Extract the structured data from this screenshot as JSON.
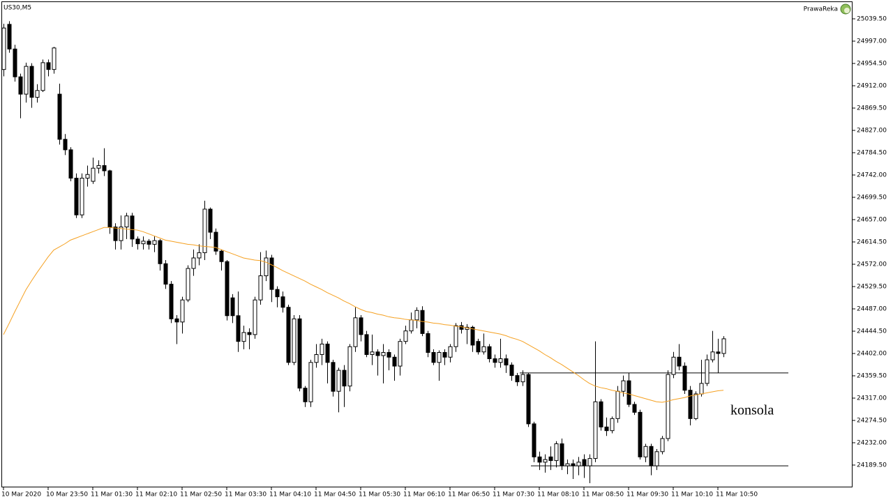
{
  "chart_data": {
    "type": "candlestick",
    "title": "US30,M5",
    "brand": "PrawaReka",
    "annotation": "konsola",
    "bull_color": "#ffffff",
    "bear_color": "#000000",
    "categories": [
      "10 Mar 2020",
      null,
      null,
      null,
      null,
      null,
      null,
      null,
      "10 Mar 23:50",
      null,
      null,
      null,
      null,
      null,
      null,
      null,
      "11 Mar 01:30",
      null,
      null,
      null,
      null,
      null,
      null,
      null,
      "11 Mar 02:10",
      null,
      null,
      null,
      null,
      null,
      null,
      null,
      "11 Mar 02:50",
      null,
      null,
      null,
      null,
      null,
      null,
      null,
      "11 Mar 03:30",
      null,
      null,
      null,
      null,
      null,
      null,
      null,
      "11 Mar 04:10",
      null,
      null,
      null,
      null,
      null,
      null,
      null,
      "11 Mar 04:50",
      null,
      null,
      null,
      null,
      null,
      null,
      null,
      "11 Mar 05:30",
      null,
      null,
      null,
      null,
      null,
      null,
      null,
      "11 Mar 06:10",
      null,
      null,
      null,
      null,
      null,
      null,
      null,
      "11 Mar 06:50",
      null,
      null,
      null,
      null,
      null,
      null,
      null,
      "11 Mar 07:30",
      null,
      null,
      null,
      null,
      null,
      null,
      null,
      "11 Mar 08:10",
      null,
      null,
      null,
      null,
      null,
      null,
      null,
      "11 Mar 08:50",
      null,
      null,
      null,
      null,
      null,
      null,
      null,
      "11 Mar 09:30",
      null,
      null,
      null,
      null,
      null,
      null,
      null,
      "11 Mar 10:10",
      null,
      null,
      null,
      null,
      null,
      null,
      null,
      "11 Mar 10:50",
      null
    ],
    "open": [
      24943,
      25029,
      24982,
      24929,
      24896,
      24949,
      24890,
      24903,
      24956,
      24943,
      24896,
      24810,
      24790,
      24736,
      24666,
      24736,
      24730,
      24755,
      24760,
      24750,
      24643,
      24617,
      24643,
      24664,
      24620,
      24611,
      24616,
      24610,
      24617,
      24573,
      24534,
      24468,
      24462,
      24504,
      24564,
      24584,
      24594,
      24677,
      24633,
      24597,
      24577,
      24508,
      24474,
      24425,
      24442,
      24438,
      24504,
      24550,
      24584,
      24524,
      24510,
      24490,
      24385,
      24468,
      24336,
      24310,
      24385,
      24400,
      24420,
      24385,
      24330,
      24370,
      24340,
      24415,
      24470,
      24438,
      24400,
      24405,
      24398,
      24404,
      24395,
      24378,
      24425,
      24445,
      24466,
      24484,
      24440,
      24404,
      24385,
      24404,
      24395,
      24415,
      24455,
      24448,
      24452,
      24425,
      24405,
      24415,
      24392,
      24385,
      24392,
      24380,
      24360,
      24348,
      24362,
      24268,
      24205,
      24195,
      24205,
      24198,
      24230,
      24188,
      24192,
      24188,
      24200,
      24188,
      24202,
      24310,
      24262,
      24255,
      24278,
      24330,
      24350,
      24305,
      24290,
      24205,
      24225,
      24188,
      24215,
      24240,
      24362,
      24395,
      24378,
      24332,
      24278,
      24325,
      24345,
      24390,
      24405,
      24402
    ],
    "high": [
      25030,
      25035,
      24990,
      24935,
      24956,
      24955,
      24915,
      24962,
      24962,
      24986,
      24916,
      24820,
      24795,
      24745,
      24745,
      24760,
      24775,
      24770,
      24793,
      24752,
      24650,
      24665,
      24670,
      24670,
      24625,
      24625,
      24620,
      24625,
      24620,
      24580,
      24540,
      24475,
      24510,
      24570,
      24600,
      24610,
      24693,
      24680,
      24640,
      24600,
      24580,
      24515,
      24520,
      24455,
      24450,
      24510,
      24595,
      24598,
      24590,
      24530,
      24520,
      24495,
      24475,
      24475,
      24340,
      24390,
      24420,
      24430,
      24425,
      24390,
      24375,
      24380,
      24420,
      24490,
      24475,
      24445,
      24438,
      24410,
      24420,
      24410,
      24400,
      24430,
      24455,
      24480,
      24490,
      24492,
      24445,
      24410,
      24408,
      24410,
      24420,
      24460,
      24462,
      24458,
      24455,
      24430,
      24440,
      24420,
      24400,
      24430,
      24400,
      24385,
      24365,
      24370,
      24365,
      24272,
      24215,
      24210,
      24225,
      24235,
      24240,
      24200,
      24200,
      24205,
      24210,
      24210,
      24425,
      24315,
      24280,
      24282,
      24340,
      24360,
      24365,
      24310,
      24295,
      24230,
      24230,
      24220,
      24245,
      24370,
      24405,
      24420,
      24385,
      24340,
      24330,
      24390,
      24400,
      24445,
      24430,
      24435
    ],
    "low": [
      24930,
      24975,
      24920,
      24850,
      24880,
      24870,
      24880,
      24900,
      24930,
      24935,
      24800,
      24780,
      24730,
      24660,
      24660,
      24720,
      24725,
      24745,
      24740,
      24630,
      24600,
      24600,
      24620,
      24605,
      24600,
      24600,
      24600,
      24595,
      24560,
      24525,
      24460,
      24420,
      24440,
      24500,
      24550,
      24570,
      24580,
      24620,
      24590,
      24560,
      24465,
      24460,
      24405,
      24410,
      24410,
      24430,
      24495,
      24540,
      24500,
      24490,
      24480,
      24380,
      24380,
      24330,
      24300,
      24300,
      24375,
      24380,
      24345,
      24320,
      24290,
      24300,
      24330,
      24405,
      24425,
      24395,
      24380,
      24360,
      24345,
      24370,
      24350,
      24360,
      24420,
      24440,
      24450,
      24435,
      24395,
      24380,
      24350,
      24380,
      24385,
      24405,
      24440,
      24420,
      24405,
      24400,
      24400,
      24385,
      24375,
      24375,
      24365,
      24350,
      24340,
      24340,
      24262,
      24195,
      24180,
      24175,
      24180,
      24185,
      24180,
      24172,
      24163,
      24170,
      24165,
      24155,
      24195,
      24255,
      24245,
      24250,
      24270,
      24320,
      24300,
      24285,
      24200,
      24195,
      24170,
      24180,
      24210,
      24235,
      24355,
      24370,
      24325,
      24265,
      24275,
      24320,
      24340,
      24385,
      24365,
      24395
    ],
    "close": [
      25022,
      24982,
      24929,
      24896,
      24949,
      24890,
      24903,
      24956,
      24943,
      24984,
      24810,
      24790,
      24736,
      24666,
      24736,
      24743,
      24755,
      24760,
      24750,
      24643,
      24617,
      24643,
      24664,
      24620,
      24611,
      24616,
      24610,
      24617,
      24573,
      24534,
      24468,
      24462,
      24504,
      24564,
      24584,
      24594,
      24677,
      24633,
      24597,
      24577,
      24474,
      24474,
      24425,
      24442,
      24438,
      24504,
      24550,
      24584,
      24524,
      24510,
      24490,
      24385,
      24468,
      24336,
      24310,
      24385,
      24400,
      24420,
      24385,
      24330,
      24370,
      24340,
      24415,
      24470,
      24438,
      24400,
      24405,
      24398,
      24404,
      24395,
      24378,
      24425,
      24445,
      24466,
      24484,
      24440,
      24404,
      24385,
      24404,
      24395,
      24415,
      24455,
      24448,
      24452,
      24418,
      24405,
      24415,
      24392,
      24385,
      24392,
      24380,
      24360,
      24348,
      24362,
      24268,
      24205,
      24195,
      24200,
      24198,
      24230,
      24188,
      24192,
      24188,
      24195,
      24188,
      24202,
      24310,
      24262,
      24255,
      24278,
      24330,
      24350,
      24305,
      24290,
      24205,
      24225,
      24188,
      24215,
      24240,
      24362,
      24395,
      24378,
      24332,
      24278,
      24325,
      24345,
      24390,
      24405,
      24402,
      24430
    ],
    "ma": {
      "color": "#f5a020",
      "values": [
        24438,
        24459,
        24481,
        24502,
        24523,
        24540,
        24556,
        24571,
        24586,
        24599,
        24605,
        24611,
        24618,
        24622,
        24626,
        24630,
        24634,
        24638,
        24642,
        24642,
        24641,
        24640,
        24639,
        24638,
        24637,
        24634,
        24630,
        24626,
        24622,
        24618,
        24616,
        24614,
        24612,
        24610,
        24609,
        24607,
        24606,
        24605,
        24604,
        24600,
        24596,
        24592,
        24588,
        24584,
        24582,
        24580,
        24579,
        24576,
        24571,
        24566,
        24560,
        24555,
        24550,
        24545,
        24540,
        24534,
        24529,
        24524,
        24518,
        24513,
        24508,
        24502,
        24497,
        24491,
        24486,
        24482,
        24480,
        24477,
        24475,
        24472,
        24470,
        24469,
        24467,
        24466,
        24465,
        24463,
        24462,
        24460,
        24459,
        24457,
        24456,
        24454,
        24453,
        24451,
        24449,
        24447,
        24445,
        24443,
        24441,
        24439,
        24436,
        24432,
        24429,
        24425,
        24419,
        24413,
        24407,
        24400,
        24394,
        24387,
        24381,
        24374,
        24367,
        24360,
        24352,
        24345,
        24340,
        24337,
        24335,
        24332,
        24330,
        24327,
        24325,
        24322,
        24319,
        24316,
        24313,
        24310,
        24309,
        24311,
        24314,
        24316,
        24318,
        24321,
        24323,
        24325,
        24327,
        24329,
        24331,
        24332
      ]
    },
    "hlines": [
      {
        "value": 24365,
        "start": 93
      },
      {
        "value": 24188,
        "start": 95
      }
    ],
    "ylim": [
      24147,
      25071.375
    ],
    "yticks": [
      {
        "value": 25039.5,
        "label": "25039.50"
      },
      {
        "value": 24997,
        "label": "24997.00"
      },
      {
        "value": 24954.5,
        "label": "24954.50"
      },
      {
        "value": 24912,
        "label": "24912.00"
      },
      {
        "value": 24869.5,
        "label": "24869.50"
      },
      {
        "value": 24827,
        "label": "24827.00"
      },
      {
        "value": 24784.5,
        "label": "24784.50"
      },
      {
        "value": 24742,
        "label": "24742.00"
      },
      {
        "value": 24699.5,
        "label": "24699.50"
      },
      {
        "value": 24657,
        "label": "24657.00"
      },
      {
        "value": 24614.5,
        "label": "24614.50"
      },
      {
        "value": 24572,
        "label": "24572.00"
      },
      {
        "value": 24529.5,
        "label": "24529.50"
      },
      {
        "value": 24487,
        "label": "24487.00"
      },
      {
        "value": 24444.5,
        "label": "24444.50"
      },
      {
        "value": 24402,
        "label": "24402.00"
      },
      {
        "value": 24359.5,
        "label": "24359.50"
      },
      {
        "value": 24317,
        "label": "24317.00"
      },
      {
        "value": 24274.5,
        "label": "24274.50"
      },
      {
        "value": 24232,
        "label": "24232.00"
      },
      {
        "value": 24189.5,
        "label": "24189.50"
      }
    ]
  }
}
